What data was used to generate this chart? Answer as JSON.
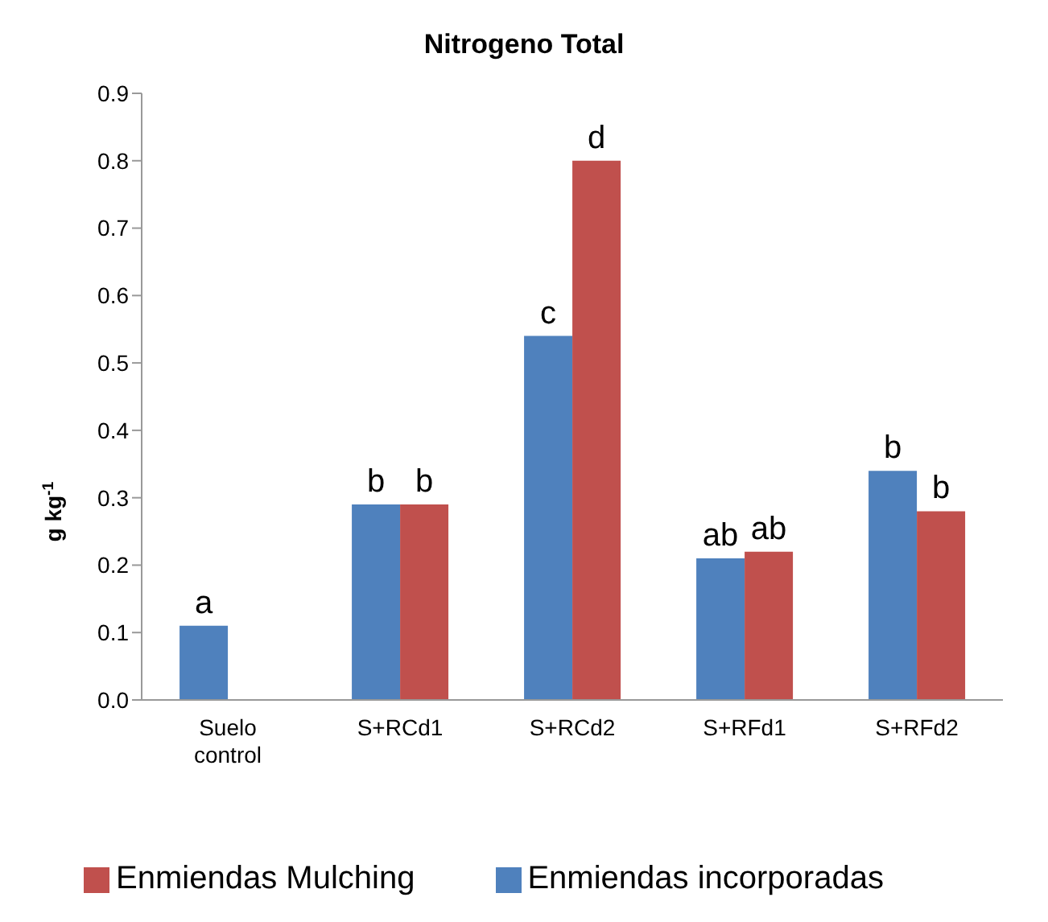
{
  "chart_data": {
    "type": "bar",
    "title": "Nitrogeno Total",
    "ylabel": "g kg$^{-1}$",
    "categories": [
      "Suelo control",
      "S+RCd1",
      "S+RCd2",
      "S+RFd1",
      "S+RFd2"
    ],
    "series": [
      {
        "name": "Enmiendas incorporadas",
        "color": "#4f81bd",
        "values": [
          0.11,
          0.29,
          0.54,
          0.21,
          0.34
        ],
        "value_labels": [
          "a",
          "b",
          "c",
          "ab",
          "b"
        ]
      },
      {
        "name": "Enmiendas Mulching",
        "color": "#c0504d",
        "values": [
          null,
          0.29,
          0.8,
          0.22,
          0.28
        ],
        "value_labels": [
          null,
          "b",
          "d",
          "ab",
          "b"
        ]
      }
    ],
    "ylim": [
      0,
      0.9
    ],
    "yticks": [
      {
        "value": 0,
        "label": "0.0"
      },
      0.1,
      0.2,
      0.3,
      0.4,
      0.5,
      0.6,
      0.7,
      0.8,
      0.9
    ],
    "grid": false,
    "legend": "bottom"
  }
}
